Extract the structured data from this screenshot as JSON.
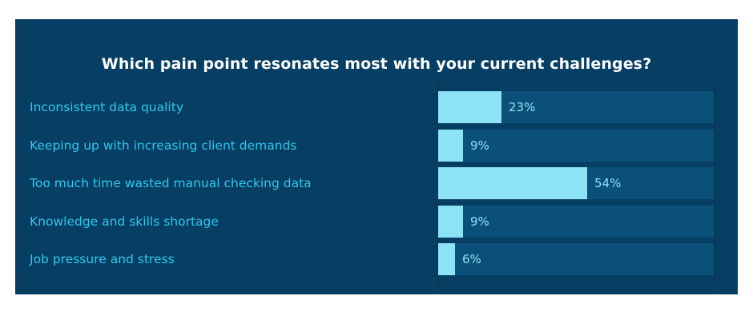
{
  "chart_data": {
    "type": "bar",
    "orientation": "horizontal",
    "title": "Which pain point resonates most with your current challenges?",
    "categories": [
      "Inconsistent data quality",
      "Keeping up with increasing client demands",
      "Too much time wasted manual checking data",
      "Knowledge and skills shortage",
      "Job pressure and stress"
    ],
    "values": [
      23,
      9,
      54,
      9,
      6
    ],
    "value_labels": [
      "23%",
      "9%",
      "54%",
      "9%",
      "6%"
    ],
    "xlim": [
      0,
      100
    ],
    "unit": "%",
    "grid": false,
    "colors": {
      "background": "#063f63",
      "track": "#0b5078",
      "bar": "#8de2f5",
      "label": "#31c6ea",
      "title": "#ffffff"
    }
  }
}
